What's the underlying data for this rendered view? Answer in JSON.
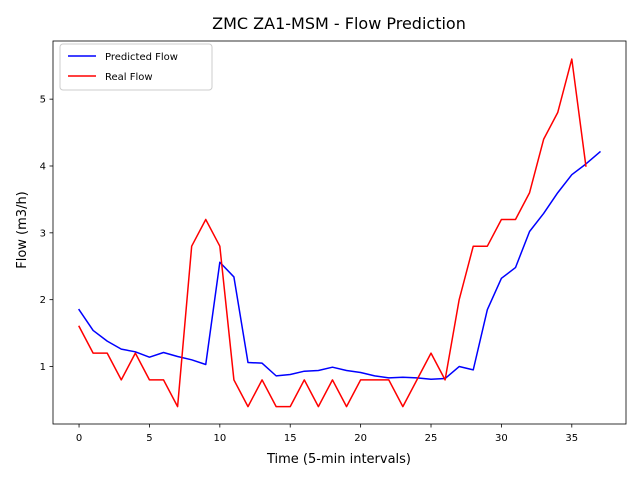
{
  "chart_data": {
    "type": "line",
    "title": "ZMC ZA1-MSM - Flow Prediction",
    "xlabel": "Time (5-min intervals)",
    "ylabel": "Flow (m3/h)",
    "xlim": [
      -1.85,
      38.85
    ],
    "ylim": [
      0.14,
      5.87
    ],
    "xticks": [
      0,
      5,
      10,
      15,
      20,
      25,
      30,
      35
    ],
    "yticks": [
      1,
      2,
      3,
      4,
      5
    ],
    "grid": false,
    "legend": "top-left",
    "series": [
      {
        "name": "Predicted Flow",
        "color": "#0000ff",
        "x": [
          0,
          1,
          2,
          3,
          4,
          5,
          6,
          7,
          8,
          9,
          10,
          11,
          12,
          13,
          14,
          15,
          16,
          17,
          18,
          19,
          20,
          21,
          22,
          23,
          24,
          25,
          26,
          27,
          28,
          29,
          30,
          31,
          32,
          33,
          34,
          35,
          36,
          37
        ],
        "values": [
          1.85,
          1.54,
          1.38,
          1.26,
          1.22,
          1.14,
          1.21,
          1.15,
          1.1,
          1.03,
          2.56,
          2.34,
          1.06,
          1.05,
          0.86,
          0.88,
          0.93,
          0.94,
          0.99,
          0.94,
          0.91,
          0.86,
          0.83,
          0.84,
          0.83,
          0.81,
          0.82,
          1.0,
          0.95,
          1.85,
          2.32,
          2.48,
          3.02,
          3.29,
          3.6,
          3.87,
          4.03,
          4.21
        ]
      },
      {
        "name": "Real Flow",
        "color": "#ff0000",
        "x": [
          0,
          1,
          2,
          3,
          4,
          5,
          6,
          7,
          8,
          9,
          10,
          11,
          12,
          13,
          14,
          15,
          16,
          17,
          18,
          19,
          20,
          21,
          22,
          23,
          24,
          25,
          26,
          27,
          28,
          29,
          30,
          31,
          32,
          33,
          34,
          35,
          36
        ],
        "values": [
          1.6,
          1.2,
          1.2,
          0.8,
          1.2,
          0.8,
          0.8,
          0.4,
          2.8,
          3.2,
          2.8,
          0.8,
          0.4,
          0.8,
          0.4,
          0.4,
          0.8,
          0.4,
          0.8,
          0.4,
          0.8,
          0.8,
          0.8,
          0.4,
          0.8,
          1.2,
          0.8,
          2.0,
          2.8,
          2.8,
          3.2,
          3.2,
          3.6,
          4.4,
          4.8,
          5.6,
          4.0
        ]
      }
    ]
  }
}
